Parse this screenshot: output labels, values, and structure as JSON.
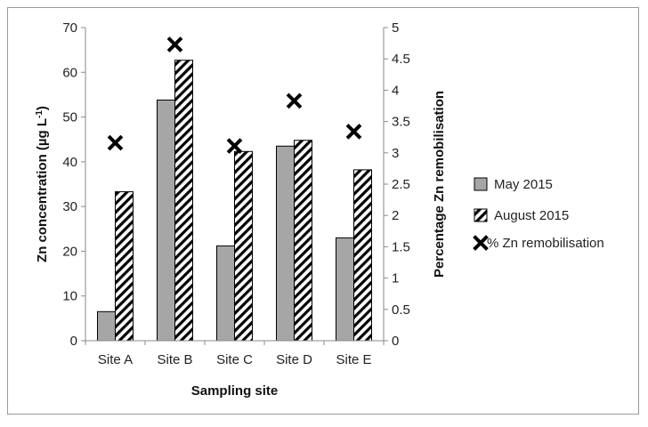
{
  "chart_data": {
    "type": "bar",
    "categories": [
      "Site A",
      "Site B",
      "Site C",
      "Site D",
      "Site E"
    ],
    "series": [
      {
        "name": "May 2015",
        "type": "bar",
        "axis": "left",
        "values": [
          6.5,
          53.8,
          21.2,
          43.5,
          23.0
        ],
        "color": "#a6a6a6"
      },
      {
        "name": "August 2015",
        "type": "bar",
        "axis": "left",
        "values": [
          33.3,
          62.7,
          42.3,
          44.8,
          38.2
        ],
        "pattern": "diagonal-hatch"
      },
      {
        "name": "% Zn remobilisation",
        "type": "scatter",
        "axis": "right",
        "marker": "x",
        "values": [
          3.16,
          4.73,
          3.11,
          3.83,
          3.34
        ],
        "color": "#000000"
      }
    ],
    "xlabel": "Sampling site",
    "ylabel_left": "Zn concentration (µg L-1)",
    "ylabel_left_parts": {
      "main": "Zn concentration (µg L",
      "sup": "-1",
      "end": ")"
    },
    "ylabel_right": "Percentage Zn remobilisation",
    "ylim_left": [
      0,
      70
    ],
    "ylim_right": [
      0,
      5
    ],
    "yticks_left": [
      "0",
      "10",
      "20",
      "30",
      "40",
      "50",
      "60",
      "70"
    ],
    "yticks_right": [
      "0",
      "0.5",
      "1",
      "1.5",
      "2",
      "2.5",
      "3",
      "3.5",
      "4",
      "4.5",
      "5"
    ],
    "grid": false,
    "legend_position": "right"
  }
}
